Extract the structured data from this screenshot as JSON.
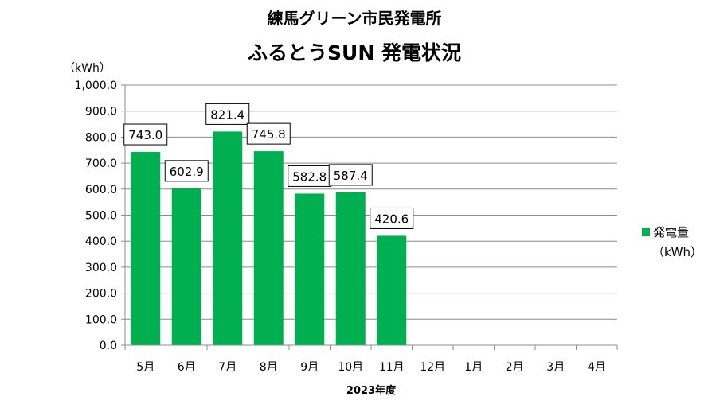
{
  "chart_data": {
    "type": "bar",
    "title": "練馬グリーン市民発電所",
    "subtitle": "ふるとうSUN 発電状況",
    "y_unit": "（kWh）",
    "xlabel": "2023年度",
    "ylim": [
      0,
      1000
    ],
    "y_ticks": [
      "0.0",
      "100.0",
      "200.0",
      "300.0",
      "400.0",
      "500.0",
      "600.0",
      "700.0",
      "800.0",
      "900.0",
      "1,000.0"
    ],
    "y_tick_values": [
      0,
      100,
      200,
      300,
      400,
      500,
      600,
      700,
      800,
      900,
      1000
    ],
    "categories": [
      "5月",
      "6月",
      "7月",
      "8月",
      "9月",
      "10月",
      "11月",
      "12月",
      "1月",
      "2月",
      "3月",
      "4月"
    ],
    "series": [
      {
        "name": "発電量",
        "unit": "（kWh）",
        "values": [
          743.0,
          602.9,
          821.4,
          745.8,
          582.8,
          587.4,
          420.6,
          null,
          null,
          null,
          null,
          null
        ],
        "labels": [
          "743.0",
          "602.9",
          "821.4",
          "745.8",
          "582.8",
          "587.4",
          "420.6",
          null,
          null,
          null,
          null,
          null
        ]
      }
    ],
    "colors": {
      "bar": "#00B050",
      "grid": "#8C8C8C",
      "axis": "#8C8C8C"
    },
    "grid": true,
    "legend_position": "right"
  }
}
